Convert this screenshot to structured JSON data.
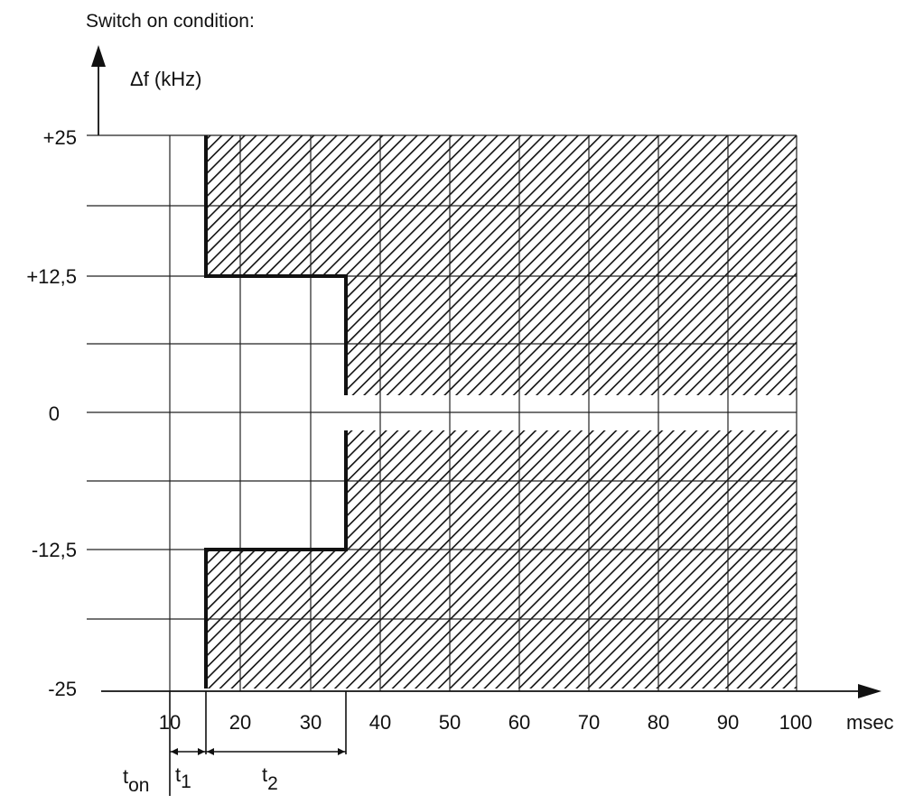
{
  "title": "Switch on condition:",
  "y_axis_label": "Δf (kHz)",
  "x_axis_unit": "msec",
  "y_ticks": [
    "+25",
    "+12,5",
    "0",
    "-12,5",
    "-25"
  ],
  "x_ticks": [
    "10",
    "20",
    "30",
    "40",
    "50",
    "60",
    "70",
    "80",
    "90",
    "100"
  ],
  "time_labels": {
    "ton": {
      "main": "t",
      "sub": "on"
    },
    "t1": {
      "main": "t",
      "sub": "1"
    },
    "t2": {
      "main": "t",
      "sub": "2"
    }
  },
  "colors": {
    "line": "#111111",
    "grid": "#222222",
    "hatch": "#111111"
  }
}
